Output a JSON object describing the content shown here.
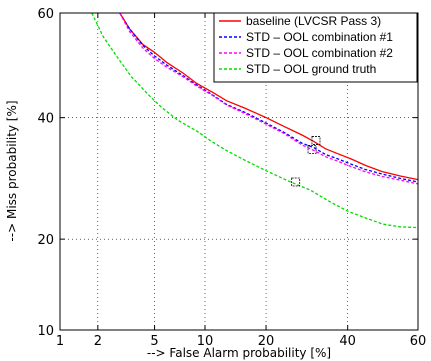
{
  "chart_data": {
    "type": "line",
    "title": "",
    "xlabel": "--> False Alarm probability [%]",
    "ylabel": "--> Miss probability [%]",
    "x_scale": "normal-deviate",
    "y_scale": "normal-deviate",
    "xlim": [
      1,
      60
    ],
    "ylim": [
      10,
      60
    ],
    "x_ticks": [
      1,
      2,
      5,
      10,
      20,
      40,
      60
    ],
    "y_ticks": [
      10,
      20,
      40,
      60
    ],
    "x_tick_labels": [
      "1",
      "2",
      "5",
      "10",
      "20",
      "40",
      "60"
    ],
    "y_tick_labels": [
      "10",
      "20",
      "40",
      "60"
    ],
    "grid": true,
    "legend_position": "top-right",
    "series": [
      {
        "name": "baseline (LVCSR Pass 3)",
        "color": "#ff0000",
        "dash": "solid",
        "points": [
          [
            2.9,
            60
          ],
          [
            3.4,
            57
          ],
          [
            4.2,
            54
          ],
          [
            5.0,
            52.5
          ],
          [
            6.0,
            50.5
          ],
          [
            7.5,
            48.5
          ],
          [
            9.0,
            46.5
          ],
          [
            11.0,
            44.8
          ],
          [
            13.0,
            43.2
          ],
          [
            16.0,
            41.8
          ],
          [
            20.0,
            40.0
          ],
          [
            24.0,
            38.3
          ],
          [
            28.0,
            36.8
          ],
          [
            31.0,
            35.6
          ],
          [
            34.0,
            34.3
          ],
          [
            37.0,
            33.5
          ],
          [
            41.0,
            32.5
          ],
          [
            45.0,
            31.4
          ],
          [
            50.0,
            30.3
          ],
          [
            55.0,
            29.6
          ],
          [
            60.0,
            29.0
          ]
        ]
      },
      {
        "name": "STD – OOL combination #1",
        "color": "#0000ff",
        "dash": "dashed",
        "points": [
          [
            2.9,
            60
          ],
          [
            3.4,
            57
          ],
          [
            4.2,
            53.8
          ],
          [
            5.0,
            51.8
          ],
          [
            6.0,
            50.0
          ],
          [
            7.5,
            48.0
          ],
          [
            9.0,
            46.2
          ],
          [
            11.0,
            44.3
          ],
          [
            13.0,
            42.5
          ],
          [
            16.0,
            41.0
          ],
          [
            20.0,
            39.0
          ],
          [
            24.0,
            37.2
          ],
          [
            28.0,
            35.3
          ],
          [
            31.0,
            34.5
          ],
          [
            34.0,
            33.3
          ],
          [
            37.0,
            32.6
          ],
          [
            41.0,
            31.6
          ],
          [
            45.0,
            30.7
          ],
          [
            50.0,
            29.9
          ],
          [
            55.0,
            29.2
          ],
          [
            60.0,
            28.6
          ]
        ]
      },
      {
        "name": "STD – OOL combination #2",
        "color": "#ff00ff",
        "dash": "dashed",
        "points": [
          [
            2.9,
            60
          ],
          [
            3.4,
            56.5
          ],
          [
            4.2,
            53.3
          ],
          [
            5.0,
            51.3
          ],
          [
            6.0,
            49.6
          ],
          [
            7.5,
            47.8
          ],
          [
            9.0,
            46.0
          ],
          [
            11.0,
            44.2
          ],
          [
            13.0,
            42.4
          ],
          [
            16.0,
            40.8
          ],
          [
            20.0,
            38.8
          ],
          [
            24.0,
            37.0
          ],
          [
            28.0,
            35.0
          ],
          [
            31.0,
            34.0
          ],
          [
            34.0,
            32.9
          ],
          [
            37.0,
            32.2
          ],
          [
            41.0,
            31.2
          ],
          [
            45.0,
            30.3
          ],
          [
            50.0,
            29.5
          ],
          [
            55.0,
            28.9
          ],
          [
            60.0,
            28.3
          ]
        ]
      },
      {
        "name": "STD – OOL ground truth",
        "color": "#00dd00",
        "dash": "dashed",
        "points": [
          [
            1.8,
            60
          ],
          [
            2.2,
            55.5
          ],
          [
            2.8,
            51.5
          ],
          [
            3.5,
            47.8
          ],
          [
            4.5,
            44.5
          ],
          [
            5.5,
            42.0
          ],
          [
            7.0,
            39.5
          ],
          [
            9.0,
            37.5
          ],
          [
            11.0,
            35.5
          ],
          [
            13.0,
            34.0
          ],
          [
            16.0,
            32.3
          ],
          [
            20.0,
            30.5
          ],
          [
            25.0,
            28.7
          ],
          [
            30.0,
            27.3
          ],
          [
            35.0,
            25.5
          ],
          [
            40.0,
            24.0
          ],
          [
            45.0,
            23.0
          ],
          [
            50.0,
            22.1
          ],
          [
            55.0,
            21.7
          ],
          [
            60.0,
            21.6
          ]
        ]
      }
    ],
    "markers": [
      {
        "x": 31.5,
        "y": 35.8,
        "color": "#000000"
      },
      {
        "x": 30.5,
        "y": 34.2,
        "color": "#000000"
      },
      {
        "x": 26.5,
        "y": 28.6,
        "color": "#000000"
      }
    ]
  }
}
